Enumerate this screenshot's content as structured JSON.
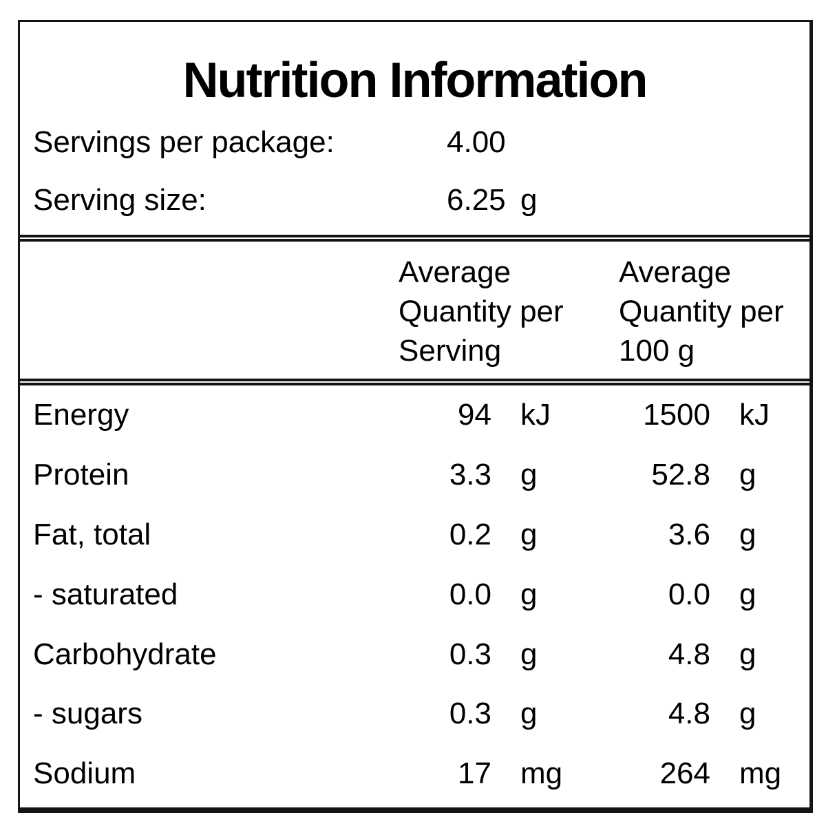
{
  "panel": {
    "title": "Nutrition Information",
    "servings_per_package": {
      "label": "Servings per package:",
      "value": "4.00"
    },
    "serving_size": {
      "label": "Serving size:",
      "value": "6.25",
      "unit": "g"
    },
    "columns": {
      "per_serving": {
        "line1": "Average",
        "line2": "Quantity per",
        "line3": "Serving"
      },
      "per_100g": {
        "line1": "Average",
        "line2": "Quantity per",
        "line3": "100 g"
      }
    },
    "rows": [
      {
        "label": "Energy",
        "per_serving": "94",
        "per_serving_unit": "kJ",
        "per_100g": "1500",
        "per_100g_unit": "kJ"
      },
      {
        "label": "Protein",
        "per_serving": "3.3",
        "per_serving_unit": "g",
        "per_100g": "52.8",
        "per_100g_unit": "g"
      },
      {
        "label": "Fat, total",
        "per_serving": "0.2",
        "per_serving_unit": "g",
        "per_100g": "3.6",
        "per_100g_unit": "g"
      },
      {
        "label": "- saturated",
        "per_serving": "0.0",
        "per_serving_unit": "g",
        "per_100g": "0.0",
        "per_100g_unit": "g"
      },
      {
        "label": "Carbohydrate",
        "per_serving": "0.3",
        "per_serving_unit": "g",
        "per_100g": "4.8",
        "per_100g_unit": "g"
      },
      {
        "label": "- sugars",
        "per_serving": "0.3",
        "per_serving_unit": "g",
        "per_100g": "4.8",
        "per_100g_unit": "g"
      },
      {
        "label": "Sodium",
        "per_serving": "17",
        "per_serving_unit": "mg",
        "per_100g": "264",
        "per_100g_unit": "mg"
      }
    ],
    "colors": {
      "text": "#000000",
      "background": "#ffffff",
      "rule": "#141414"
    }
  }
}
